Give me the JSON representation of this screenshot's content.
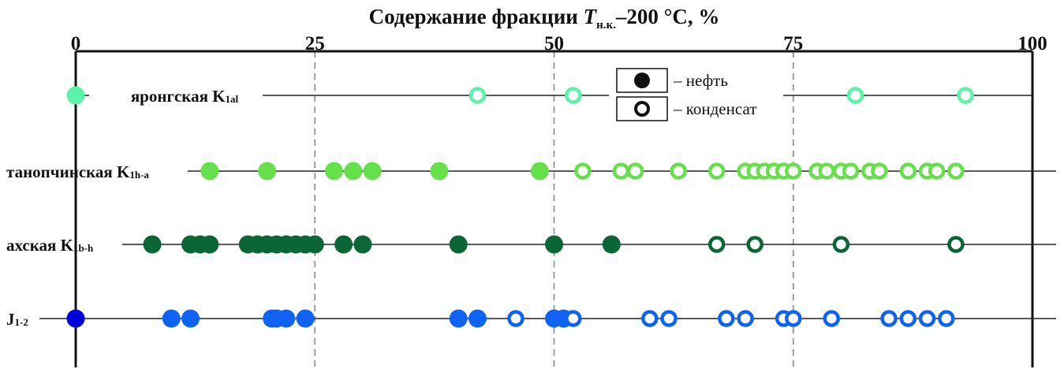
{
  "chart_data": {
    "type": "scatter",
    "title_prefix": "Содержание фракции ",
    "title_symbol": "T",
    "title_subscript": "н.к.",
    "title_suffix": "–200 °С, %",
    "xlim": [
      0,
      100
    ],
    "x_ticks": [
      "0",
      "25",
      "50",
      "75",
      "100"
    ],
    "grid_lines_x": [
      25,
      50,
      75
    ],
    "legend": {
      "oil_label": "– нефть",
      "condensate_label": "– конденсат",
      "position": "top-center-right"
    },
    "series": [
      {
        "label_main": "яронгская K",
        "label_sub": "1al",
        "color": "#5cf2a8",
        "oil": [
          0
        ],
        "condensate": [
          42,
          52,
          81.5,
          93
        ]
      },
      {
        "label_main": "танопчинская K",
        "label_sub": "1h-a",
        "color": "#66e04a",
        "oil": [
          14,
          20,
          27,
          29,
          31,
          38,
          48.5
        ],
        "condensate": [
          53,
          57,
          58.5,
          63,
          67,
          70,
          71,
          72,
          73,
          74,
          75,
          77.5,
          78.5,
          80,
          81,
          83,
          84,
          87,
          89,
          90,
          92
        ]
      },
      {
        "label_main": "ахская K",
        "label_sub": "1b-h",
        "color": "#0b6636",
        "oil": [
          8,
          12,
          13,
          14,
          18,
          19,
          20,
          21,
          22,
          23,
          24,
          25,
          28,
          30,
          40,
          50,
          56
        ],
        "condensate": [
          67,
          71,
          80,
          92
        ]
      },
      {
        "label_main": "J",
        "label_sub": "1-2",
        "color": "#0e63f2",
        "special_first_color": "#0000dd",
        "oil": [
          0,
          10,
          12,
          20.5,
          21,
          22,
          24,
          40,
          42,
          50,
          51
        ],
        "condensate": [
          46,
          52,
          60,
          62,
          68,
          70,
          74,
          75,
          79,
          85,
          87,
          89,
          91
        ]
      }
    ]
  }
}
